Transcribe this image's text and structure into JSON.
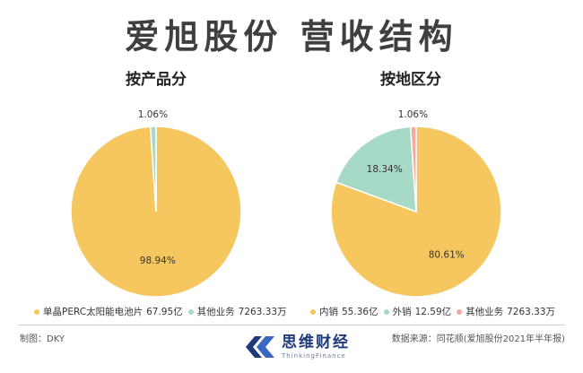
{
  "title": "爱旭股份 营收结构",
  "chart_data": [
    {
      "type": "pie",
      "title": "按产品分",
      "series": [
        {
          "name": "单晶PERC太阳能电池片",
          "legend_value": "67.95亿",
          "value": 98.94,
          "label": "98.94%",
          "color": "#f6c75f"
        },
        {
          "name": "其他业务",
          "legend_value": "7263.33万",
          "value": 1.06,
          "label": "1.06%",
          "color": "#a7d9c7"
        }
      ]
    },
    {
      "type": "pie",
      "title": "按地区分",
      "series": [
        {
          "name": "内销",
          "legend_value": "55.36亿",
          "value": 80.61,
          "label": "80.61%",
          "color": "#f6c75f"
        },
        {
          "name": "外销",
          "legend_value": "12.59亿",
          "value": 18.34,
          "label": "18.34%",
          "color": "#a7d9c7"
        },
        {
          "name": "其他业务",
          "legend_value": "7263.33万",
          "value": 1.06,
          "label": "1.06%",
          "color": "#f4aaa0"
        }
      ]
    }
  ],
  "footer": {
    "credit": "制图：DKY",
    "source": "数据来源：同花顺(爱旭股份2021年半年报)",
    "brand_name": "思维财经",
    "brand_en": "ThinkingFinance"
  }
}
